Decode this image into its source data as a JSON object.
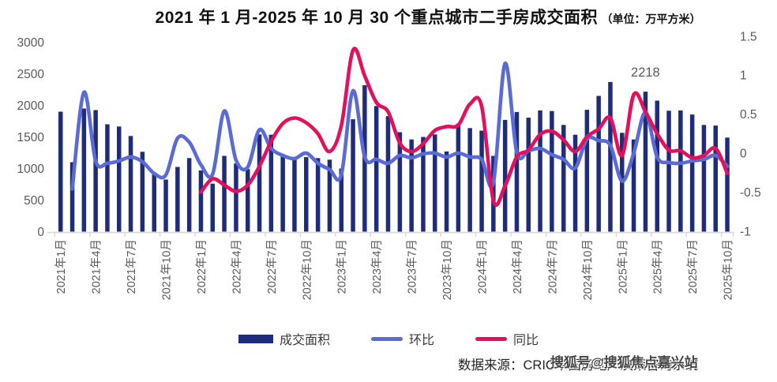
{
  "title": {
    "main": "2021 年 1 月-2025 年 10 月 30 个重点城市二手房成交面积",
    "unit": "（单位：万平方米）"
  },
  "colors": {
    "bar": "#1F2C7A",
    "mom_line": "#5B6BD6",
    "yoy_line": "#E4105C",
    "axis_text": "#595959",
    "baseline": "#D9D9D9"
  },
  "legend": {
    "bar_label": "成交面积",
    "mom_label": "环比",
    "yoy_label": "同比"
  },
  "footer": {
    "source": "数据来源：CRIC中国房地产决策咨询系统",
    "watermark": "搜狐号@搜狐焦点嘉兴站"
  },
  "chart_data": {
    "type": "bar+line combo (bars = transaction area, left axis; lines = MoM/YoY ratios, right axis)",
    "title": "2021年1月-2025年10月30个重点城市二手房成交面积（单位：万平方米）",
    "grid": "off",
    "left_axis": {
      "min": 0,
      "max": 3000,
      "ticks": [
        3000,
        2500,
        2000,
        1500,
        1000,
        500,
        0
      ]
    },
    "right_axis": {
      "min": -1,
      "max": 1.5,
      "ticks": [
        1.5,
        1,
        0.5,
        0,
        -0.5,
        -1
      ]
    },
    "x_tick_every_n_months": 3,
    "months": [
      "2021年1月",
      "2021年2月",
      "2021年3月",
      "2021年4月",
      "2021年5月",
      "2021年6月",
      "2021年7月",
      "2021年8月",
      "2021年9月",
      "2021年10月",
      "2021年11月",
      "2021年12月",
      "2022年1月",
      "2022年2月",
      "2022年3月",
      "2022年4月",
      "2022年5月",
      "2022年6月",
      "2022年7月",
      "2022年8月",
      "2022年9月",
      "2022年10月",
      "2022年11月",
      "2022年12月",
      "2023年1月",
      "2023年2月",
      "2023年3月",
      "2023年4月",
      "2023年5月",
      "2023年6月",
      "2023年7月",
      "2023年8月",
      "2023年9月",
      "2023年10月",
      "2023年11月",
      "2023年12月",
      "2024年1月",
      "2024年2月",
      "2024年3月",
      "2024年4月",
      "2024年5月",
      "2024年6月",
      "2024年7月",
      "2024年8月",
      "2024年9月",
      "2024年10月",
      "2024年11月",
      "2024年12月",
      "2025年1月",
      "2025年2月",
      "2025年3月",
      "2025年4月",
      "2025年5月",
      "2025年6月",
      "2025年7月",
      "2025年8月",
      "2025年9月",
      "2025年10月"
    ],
    "series": [
      {
        "name": "成交面积",
        "type": "bar",
        "axis": "left",
        "values": [
          1900,
          1100,
          1950,
          1925,
          1700,
          1665,
          1515,
          1265,
          930,
          825,
          1025,
          1165,
          970,
          760,
          1200,
          1080,
          990,
          1540,
          1535,
          1210,
          1170,
          1180,
          1165,
          1140,
          1000,
          1780,
          2320,
          1990,
          1830,
          1575,
          1460,
          1500,
          1540,
          1270,
          1710,
          1640,
          1600,
          1200,
          1770,
          1895,
          1805,
          1920,
          1910,
          1690,
          1535,
          1930,
          2150,
          2370,
          1565,
          1460,
          2218,
          2075,
          1915,
          1920,
          1855,
          1690,
          1680,
          1490
        ]
      },
      {
        "name": "环比",
        "type": "line",
        "axis": "right",
        "values": [
          null,
          -0.46,
          0.78,
          -0.1,
          -0.13,
          -0.1,
          -0.05,
          -0.11,
          -0.26,
          -0.28,
          0.19,
          0.14,
          -0.15,
          -0.27,
          0.54,
          -0.09,
          -0.18,
          0.3,
          0.06,
          -0.03,
          -0.07,
          0.0,
          -0.13,
          -0.21,
          -0.28,
          0.8,
          -0.05,
          -0.08,
          -0.13,
          -0.03,
          -0.06,
          -0.01,
          0.0,
          -0.05,
          0.0,
          -0.05,
          -0.08,
          -0.38,
          1.15,
          0.01,
          0.03,
          0.06,
          -0.02,
          -0.08,
          -0.19,
          0.18,
          0.16,
          0.1,
          -0.36,
          0.0,
          0.52,
          -0.05,
          -0.12,
          -0.13,
          -0.1,
          -0.08,
          -0.03,
          -0.17
        ]
      },
      {
        "name": "同比",
        "type": "line",
        "axis": "right",
        "values": [
          null,
          null,
          null,
          null,
          null,
          null,
          null,
          null,
          null,
          null,
          null,
          null,
          -0.5,
          -0.33,
          -0.41,
          -0.49,
          -0.41,
          -0.17,
          0.15,
          0.38,
          0.45,
          0.39,
          0.25,
          0.02,
          0.35,
          1.32,
          0.99,
          0.65,
          0.53,
          0.13,
          0.02,
          0.12,
          0.29,
          0.34,
          0.36,
          0.63,
          0.6,
          -0.61,
          -0.42,
          -0.05,
          0.04,
          0.24,
          0.28,
          0.17,
          0.02,
          0.21,
          0.31,
          0.45,
          -0.03,
          0.75,
          0.53,
          0.25,
          0.04,
          0.03,
          -0.06,
          -0.03,
          0.06,
          -0.26
        ]
      }
    ],
    "annotation": {
      "text": "2218",
      "month": "2025年3月",
      "month_index": 50
    }
  }
}
